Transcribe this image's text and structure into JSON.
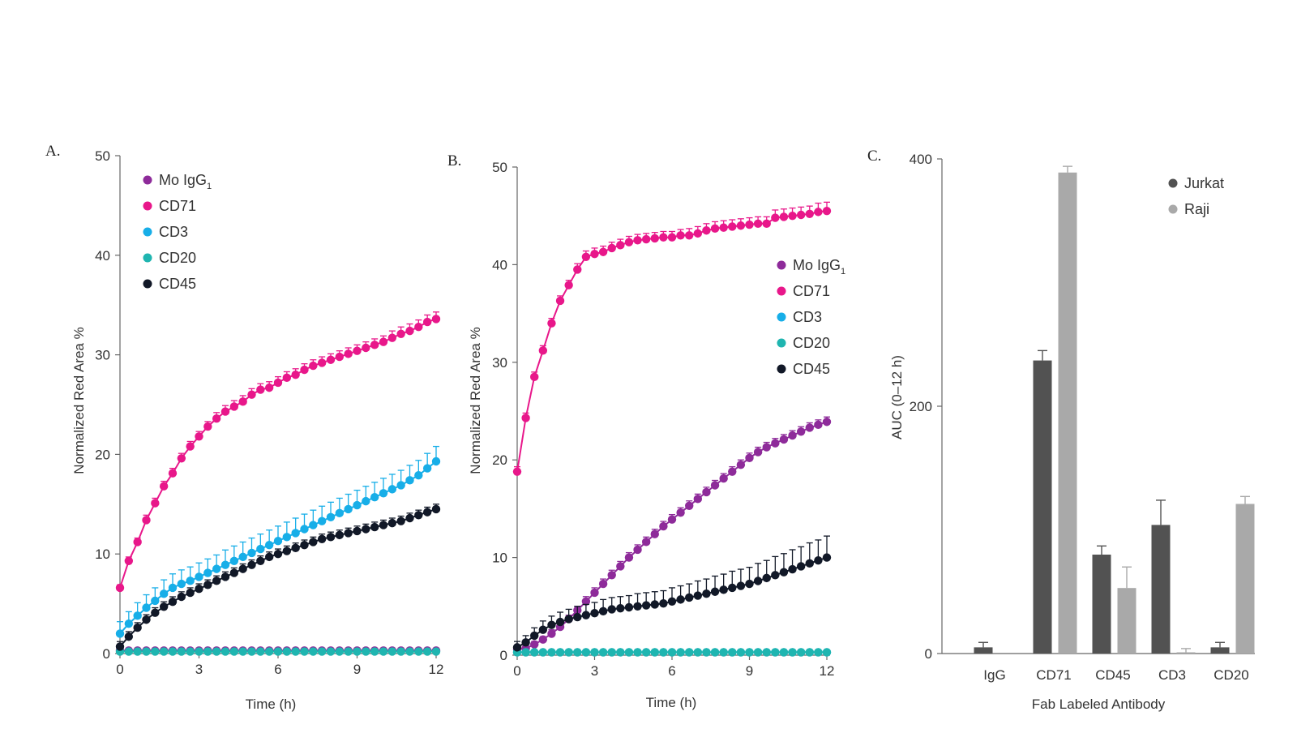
{
  "chart_data": [
    {
      "id": "A",
      "panel_label": "A.",
      "type": "line",
      "xlabel": "Time (h)",
      "ylabel": "Normalized Red Area %",
      "xlim": [
        0,
        12
      ],
      "ylim": [
        0,
        50
      ],
      "xticks": [
        0,
        3,
        6,
        9,
        12
      ],
      "yticks": [
        0,
        10,
        20,
        30,
        40,
        50
      ],
      "legend_position": "top-left",
      "series": [
        {
          "name": "Mo IgG",
          "subscript": "1",
          "color": "#8e2b9a",
          "values": [
            0.3,
            0.3,
            0.3,
            0.3,
            0.3,
            0.3,
            0.3,
            0.3,
            0.3,
            0.3,
            0.3,
            0.3,
            0.3,
            0.3,
            0.3,
            0.3,
            0.3,
            0.3,
            0.3,
            0.3,
            0.3,
            0.3,
            0.3,
            0.3,
            0.3,
            0.3,
            0.3,
            0.3,
            0.3,
            0.3,
            0.3,
            0.3,
            0.3,
            0.3,
            0.3,
            0.3,
            0.3
          ],
          "errors": [
            0.2,
            0.2,
            0.2,
            0.2,
            0.2,
            0.2,
            0.2,
            0.2,
            0.2,
            0.2,
            0.2,
            0.2,
            0.2,
            0.2,
            0.2,
            0.2,
            0.2,
            0.2,
            0.2,
            0.2,
            0.2,
            0.2,
            0.2,
            0.2,
            0.2,
            0.2,
            0.2,
            0.2,
            0.2,
            0.2,
            0.2,
            0.2,
            0.2,
            0.2,
            0.2,
            0.2,
            0.2
          ]
        },
        {
          "name": "CD71",
          "color": "#e8178a",
          "values": [
            6.6,
            9.3,
            11.2,
            13.4,
            15.1,
            16.8,
            18.1,
            19.6,
            20.8,
            21.8,
            22.8,
            23.6,
            24.3,
            24.8,
            25.3,
            26.0,
            26.5,
            26.7,
            27.2,
            27.7,
            28.0,
            28.5,
            28.9,
            29.2,
            29.5,
            29.8,
            30.1,
            30.4,
            30.7,
            31.0,
            31.3,
            31.7,
            32.1,
            32.4,
            32.8,
            33.3,
            33.6
          ],
          "errors": [
            0.3,
            0.4,
            0.4,
            0.5,
            0.5,
            0.5,
            0.5,
            0.5,
            0.5,
            0.5,
            0.5,
            0.6,
            0.6,
            0.6,
            0.6,
            0.6,
            0.6,
            0.6,
            0.6,
            0.6,
            0.6,
            0.6,
            0.6,
            0.6,
            0.6,
            0.6,
            0.6,
            0.6,
            0.6,
            0.6,
            0.6,
            0.7,
            0.7,
            0.7,
            0.7,
            0.7,
            0.7
          ]
        },
        {
          "name": "CD3",
          "color": "#17aee8",
          "values": [
            2.0,
            3.0,
            3.8,
            4.6,
            5.3,
            6.0,
            6.6,
            7.0,
            7.3,
            7.7,
            8.1,
            8.5,
            8.9,
            9.3,
            9.7,
            10.1,
            10.5,
            10.9,
            11.3,
            11.7,
            12.1,
            12.5,
            12.9,
            13.3,
            13.7,
            14.1,
            14.5,
            14.9,
            15.3,
            15.7,
            16.1,
            16.5,
            16.9,
            17.4,
            17.9,
            18.6,
            19.3
          ],
          "errors": [
            1.2,
            1.2,
            1.3,
            1.3,
            1.3,
            1.4,
            1.4,
            1.4,
            1.4,
            1.4,
            1.4,
            1.4,
            1.5,
            1.5,
            1.5,
            1.5,
            1.5,
            1.5,
            1.5,
            1.5,
            1.5,
            1.5,
            1.5,
            1.5,
            1.5,
            1.5,
            1.5,
            1.5,
            1.5,
            1.5,
            1.5,
            1.5,
            1.5,
            1.5,
            1.5,
            1.5,
            1.5
          ]
        },
        {
          "name": "CD20",
          "color": "#1fb5b0",
          "values": [
            0.2,
            0.2,
            0.2,
            0.2,
            0.2,
            0.2,
            0.2,
            0.2,
            0.2,
            0.2,
            0.2,
            0.2,
            0.2,
            0.2,
            0.2,
            0.2,
            0.2,
            0.2,
            0.2,
            0.2,
            0.2,
            0.2,
            0.2,
            0.2,
            0.2,
            0.2,
            0.2,
            0.2,
            0.2,
            0.2,
            0.2,
            0.2,
            0.2,
            0.2,
            0.2,
            0.2,
            0.2
          ],
          "errors": [
            0.1,
            0.1,
            0.1,
            0.1,
            0.1,
            0.1,
            0.1,
            0.1,
            0.1,
            0.1,
            0.1,
            0.1,
            0.1,
            0.1,
            0.1,
            0.1,
            0.1,
            0.1,
            0.1,
            0.1,
            0.1,
            0.1,
            0.1,
            0.1,
            0.1,
            0.1,
            0.1,
            0.1,
            0.1,
            0.1,
            0.1,
            0.1,
            0.1,
            0.1,
            0.1,
            0.1,
            0.1
          ]
        },
        {
          "name": "CD45",
          "color": "#111827",
          "values": [
            0.7,
            1.7,
            2.6,
            3.4,
            4.1,
            4.7,
            5.2,
            5.7,
            6.1,
            6.5,
            6.9,
            7.3,
            7.7,
            8.1,
            8.5,
            8.9,
            9.3,
            9.7,
            10.0,
            10.3,
            10.6,
            10.9,
            11.2,
            11.5,
            11.7,
            11.9,
            12.1,
            12.3,
            12.5,
            12.7,
            12.9,
            13.1,
            13.3,
            13.6,
            13.9,
            14.2,
            14.5
          ],
          "errors": [
            0.5,
            0.5,
            0.5,
            0.5,
            0.5,
            0.5,
            0.5,
            0.5,
            0.5,
            0.5,
            0.5,
            0.5,
            0.5,
            0.5,
            0.5,
            0.5,
            0.5,
            0.5,
            0.5,
            0.5,
            0.5,
            0.5,
            0.5,
            0.5,
            0.5,
            0.5,
            0.5,
            0.5,
            0.5,
            0.5,
            0.5,
            0.5,
            0.5,
            0.5,
            0.5,
            0.5,
            0.5
          ]
        }
      ]
    },
    {
      "id": "B",
      "panel_label": "B.",
      "type": "line",
      "xlabel": "Time (h)",
      "ylabel": "Normalized Red Area %",
      "xlim": [
        0,
        12
      ],
      "ylim": [
        0,
        50
      ],
      "xticks": [
        0,
        3,
        6,
        9,
        12
      ],
      "yticks": [
        0,
        10,
        20,
        30,
        40,
        50
      ],
      "legend_position": "right",
      "series": [
        {
          "name": "Mo IgG",
          "subscript": "1",
          "color": "#8e2b9a",
          "values": [
            0.6,
            0.7,
            1.1,
            1.6,
            2.2,
            2.9,
            3.7,
            4.6,
            5.5,
            6.4,
            7.3,
            8.2,
            9.1,
            10.0,
            10.8,
            11.6,
            12.4,
            13.2,
            13.9,
            14.6,
            15.3,
            16.0,
            16.7,
            17.4,
            18.1,
            18.8,
            19.5,
            20.2,
            20.8,
            21.3,
            21.7,
            22.1,
            22.5,
            22.9,
            23.3,
            23.6,
            23.9
          ],
          "errors": [
            0.3,
            0.3,
            0.3,
            0.3,
            0.4,
            0.4,
            0.4,
            0.4,
            0.5,
            0.5,
            0.5,
            0.5,
            0.5,
            0.5,
            0.5,
            0.5,
            0.5,
            0.5,
            0.5,
            0.5,
            0.5,
            0.5,
            0.5,
            0.5,
            0.5,
            0.5,
            0.5,
            0.5,
            0.5,
            0.5,
            0.5,
            0.5,
            0.5,
            0.5,
            0.5,
            0.5,
            0.5
          ]
        },
        {
          "name": "CD71",
          "color": "#e8178a",
          "values": [
            18.8,
            24.3,
            28.5,
            31.2,
            34.0,
            36.3,
            37.9,
            39.5,
            40.8,
            41.1,
            41.3,
            41.7,
            42.0,
            42.3,
            42.5,
            42.6,
            42.7,
            42.8,
            42.8,
            43.0,
            43.0,
            43.2,
            43.5,
            43.7,
            43.8,
            43.9,
            44.0,
            44.1,
            44.2,
            44.2,
            44.8,
            44.9,
            45.0,
            45.1,
            45.2,
            45.4,
            45.5
          ],
          "errors": [
            0.5,
            0.5,
            0.5,
            0.5,
            0.5,
            0.5,
            0.5,
            0.6,
            0.6,
            0.6,
            0.6,
            0.6,
            0.6,
            0.6,
            0.6,
            0.6,
            0.6,
            0.6,
            0.6,
            0.6,
            0.7,
            0.7,
            0.7,
            0.7,
            0.7,
            0.7,
            0.7,
            0.7,
            0.7,
            0.7,
            0.8,
            0.8,
            0.8,
            0.8,
            0.8,
            0.9,
            0.9
          ]
        },
        {
          "name": "CD3",
          "color": "#17aee8",
          "values": [
            0.3,
            0.3,
            0.3,
            0.3,
            0.3,
            0.3,
            0.3,
            0.3,
            0.3,
            0.3,
            0.3,
            0.3,
            0.3,
            0.3,
            0.3,
            0.3,
            0.3,
            0.3,
            0.3,
            0.3,
            0.3,
            0.3,
            0.3,
            0.3,
            0.3,
            0.3,
            0.3,
            0.3,
            0.3,
            0.3,
            0.3,
            0.3,
            0.3,
            0.3,
            0.3,
            0.3,
            0.3
          ],
          "errors": [
            0.1,
            0.1,
            0.1,
            0.1,
            0.1,
            0.1,
            0.1,
            0.1,
            0.1,
            0.1,
            0.1,
            0.1,
            0.1,
            0.1,
            0.1,
            0.1,
            0.1,
            0.1,
            0.1,
            0.1,
            0.1,
            0.1,
            0.1,
            0.1,
            0.1,
            0.1,
            0.1,
            0.1,
            0.1,
            0.1,
            0.1,
            0.1,
            0.1,
            0.1,
            0.1,
            0.1,
            0.1
          ]
        },
        {
          "name": "CD20",
          "color": "#1fb5b0",
          "values": [
            0.3,
            0.3,
            0.3,
            0.3,
            0.3,
            0.3,
            0.3,
            0.3,
            0.3,
            0.3,
            0.3,
            0.3,
            0.3,
            0.3,
            0.3,
            0.3,
            0.3,
            0.3,
            0.3,
            0.3,
            0.3,
            0.3,
            0.3,
            0.3,
            0.3,
            0.3,
            0.3,
            0.3,
            0.3,
            0.3,
            0.3,
            0.3,
            0.3,
            0.3,
            0.3,
            0.3,
            0.3
          ],
          "errors": [
            0.1,
            0.1,
            0.1,
            0.1,
            0.1,
            0.1,
            0.1,
            0.1,
            0.1,
            0.1,
            0.1,
            0.1,
            0.1,
            0.1,
            0.1,
            0.1,
            0.1,
            0.1,
            0.1,
            0.1,
            0.1,
            0.1,
            0.1,
            0.1,
            0.1,
            0.1,
            0.1,
            0.1,
            0.1,
            0.1,
            0.1,
            0.1,
            0.1,
            0.1,
            0.1,
            0.1,
            0.1
          ]
        },
        {
          "name": "CD45",
          "color": "#111827",
          "values": [
            0.8,
            1.3,
            2.0,
            2.6,
            3.1,
            3.4,
            3.7,
            3.9,
            4.1,
            4.3,
            4.5,
            4.7,
            4.8,
            4.9,
            5.0,
            5.1,
            5.2,
            5.3,
            5.5,
            5.7,
            5.9,
            6.1,
            6.3,
            6.5,
            6.7,
            6.9,
            7.1,
            7.3,
            7.6,
            7.9,
            8.2,
            8.5,
            8.8,
            9.1,
            9.4,
            9.7,
            10.0
          ],
          "errors": [
            0.6,
            0.7,
            0.8,
            0.9,
            0.9,
            1.0,
            1.0,
            1.1,
            1.1,
            1.1,
            1.2,
            1.2,
            1.2,
            1.2,
            1.3,
            1.3,
            1.3,
            1.3,
            1.4,
            1.4,
            1.4,
            1.5,
            1.5,
            1.6,
            1.6,
            1.7,
            1.7,
            1.7,
            1.8,
            1.8,
            1.9,
            1.9,
            2.0,
            2.0,
            2.1,
            2.1,
            2.2
          ]
        }
      ]
    },
    {
      "id": "C",
      "panel_label": "C.",
      "type": "bar",
      "xlabel": "Fab Labeled Antibody",
      "ylabel": "AUC (0–12 h)",
      "ylim": [
        0,
        400
      ],
      "yticks": [
        0,
        200,
        400
      ],
      "categories": [
        "IgG",
        "CD71",
        "CD45",
        "CD3",
        "CD20"
      ],
      "legend_position": "top-right",
      "series": [
        {
          "name": "Jurkat",
          "color": "#525252",
          "values": [
            5,
            237,
            80,
            104,
            5
          ],
          "errors": [
            4,
            8,
            7,
            20,
            4
          ]
        },
        {
          "name": "Raji",
          "color": "#a9a9a9",
          "values": [
            0,
            389,
            53,
            1,
            121
          ],
          "errors": [
            0,
            5,
            17,
            3,
            6
          ]
        }
      ]
    }
  ]
}
